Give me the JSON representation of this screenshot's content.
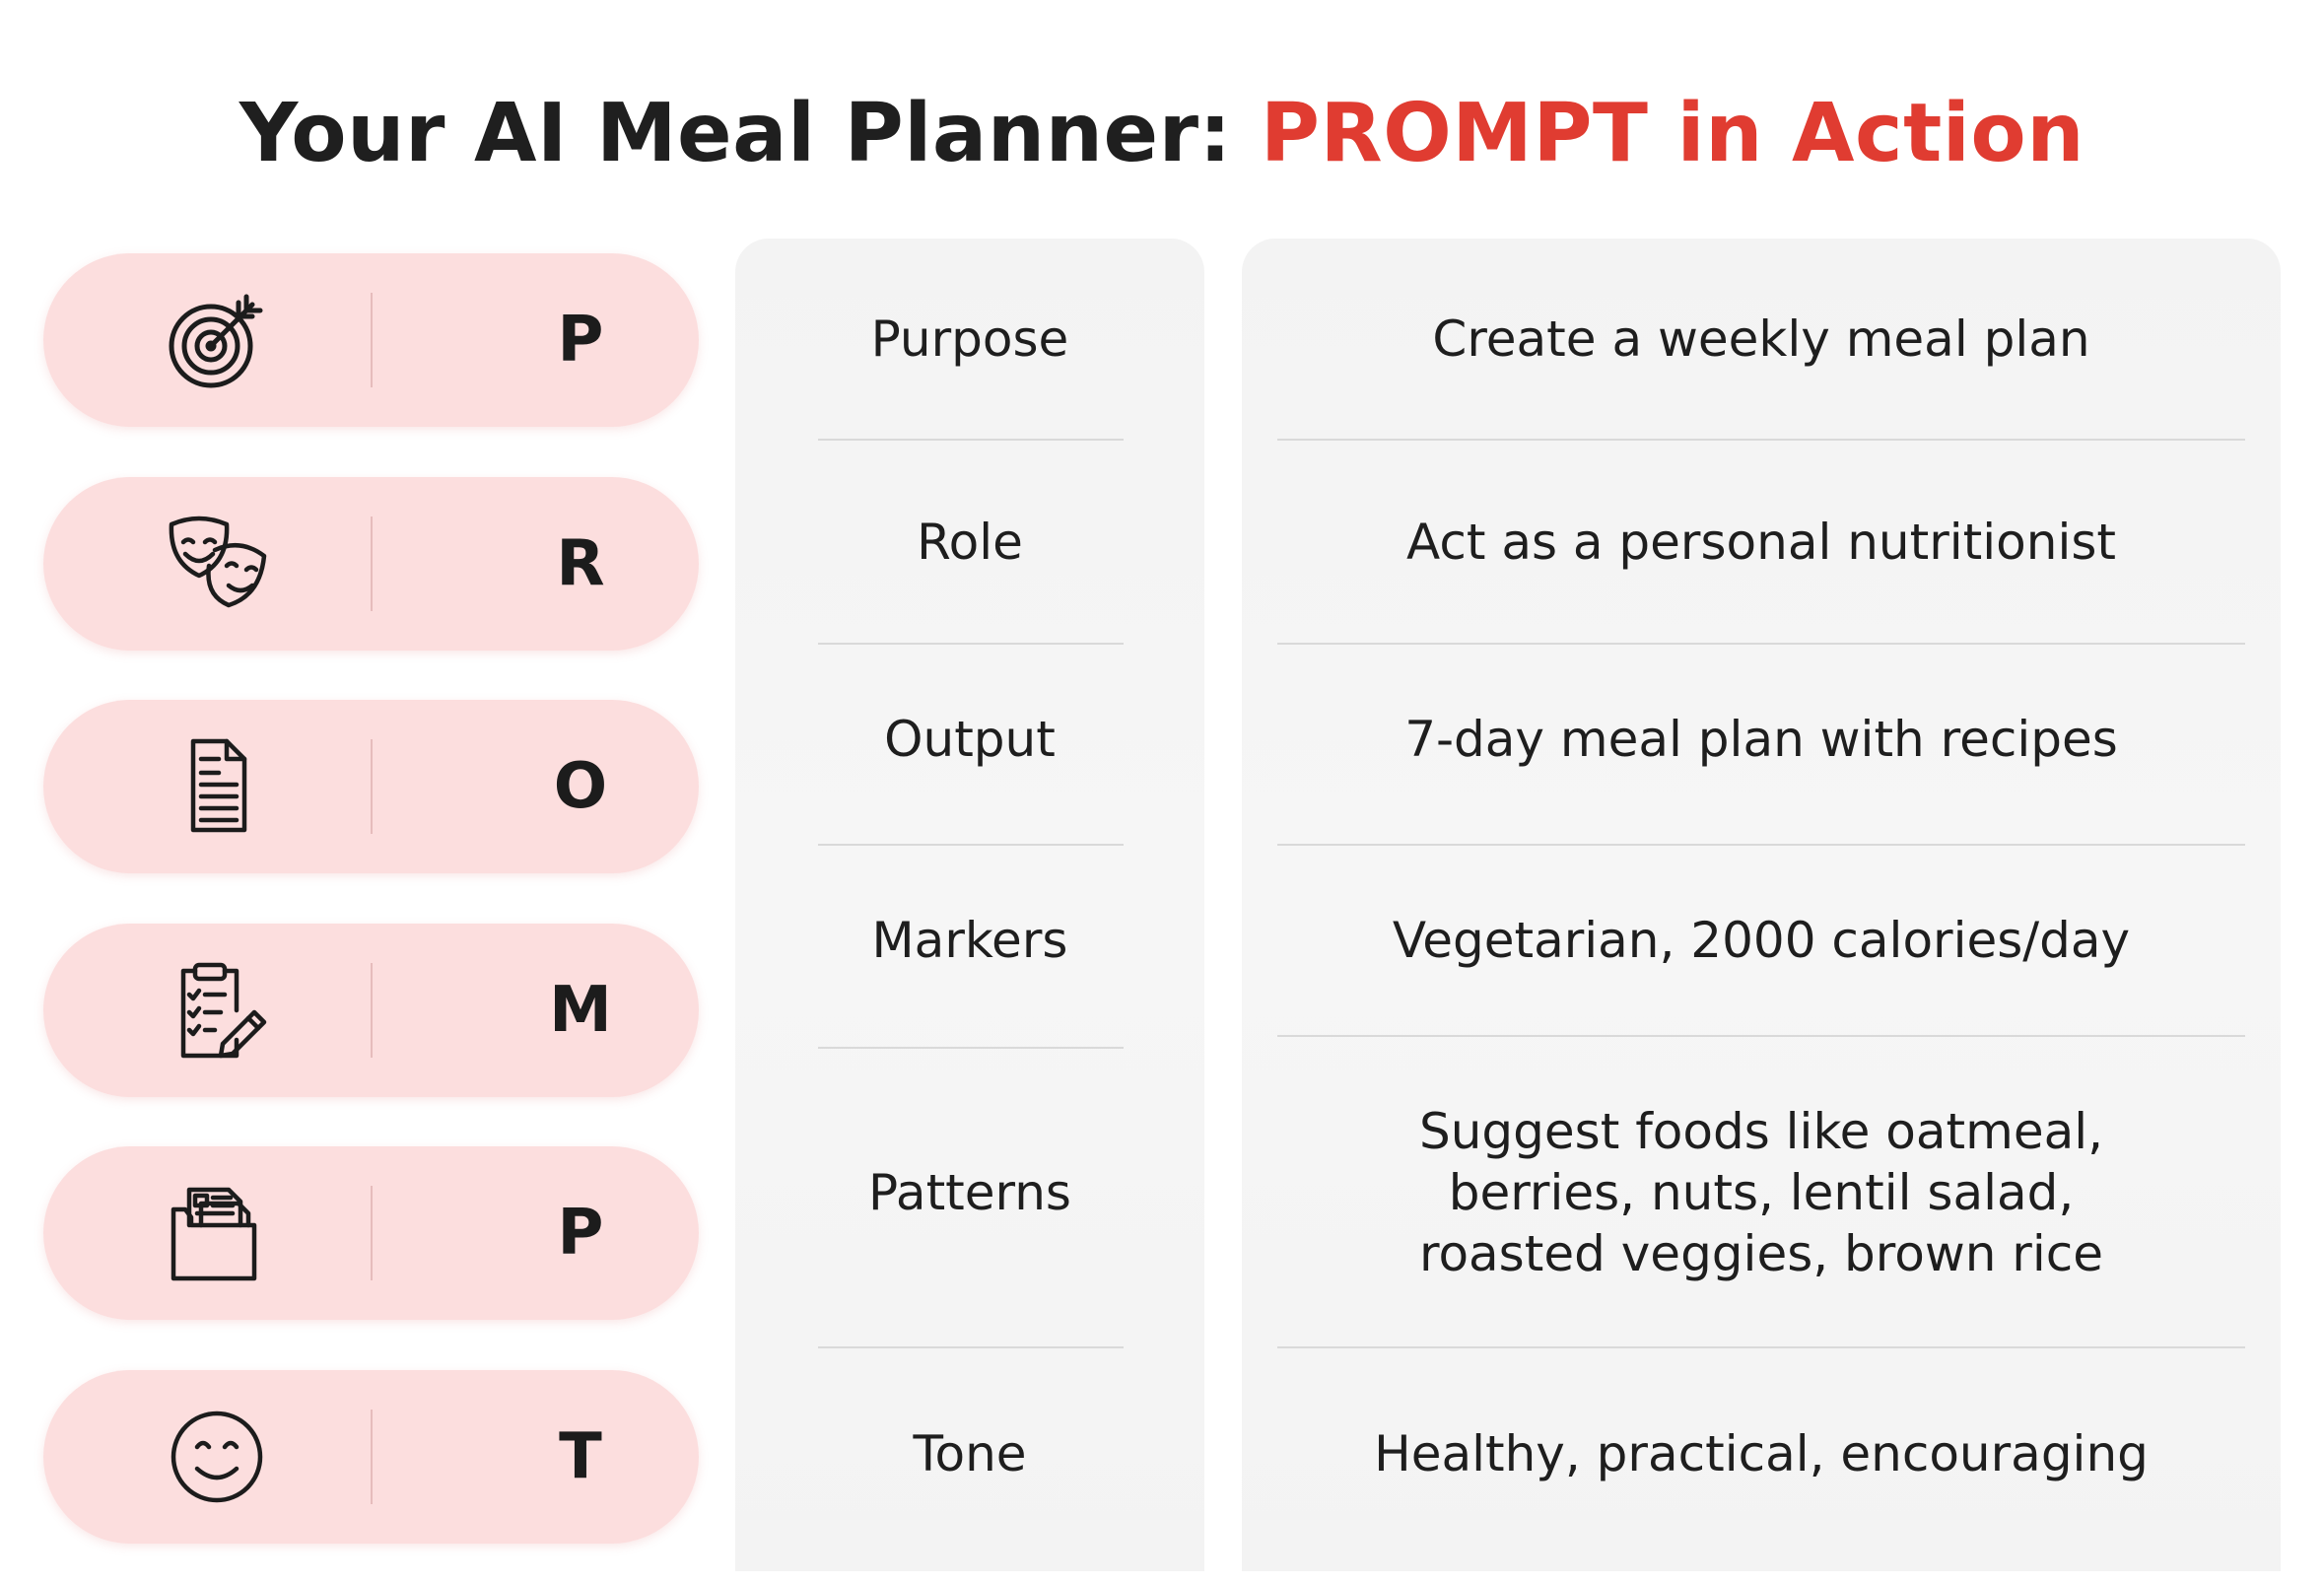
{
  "title": {
    "prefix": "Your AI Meal Planner: ",
    "highlight": "PROMPT in Action",
    "accent_color": "#e03c31"
  },
  "pill_color": "#fcdede",
  "rows": [
    {
      "icon": "target-icon",
      "letter": "P",
      "component": "Purpose",
      "value": "Create a weekly meal plan"
    },
    {
      "icon": "theater-masks-icon",
      "letter": "R",
      "component": "Role",
      "value": "Act as a personal nutritionist"
    },
    {
      "icon": "document-icon",
      "letter": "O",
      "component": "Output",
      "value": "7-day meal plan with recipes"
    },
    {
      "icon": "clipboard-checklist-icon",
      "letter": "M",
      "component": "Markers",
      "value": "Vegetarian, 2000 calories/day"
    },
    {
      "icon": "folder-documents-icon",
      "letter": "P",
      "component": "Patterns",
      "value": "Suggest foods like oatmeal,\nberries, nuts, lentil salad,\nroasted veggies, brown rice"
    },
    {
      "icon": "smiley-face-icon",
      "letter": "T",
      "component": "Tone",
      "value": "Healthy, practical, encouraging"
    }
  ]
}
